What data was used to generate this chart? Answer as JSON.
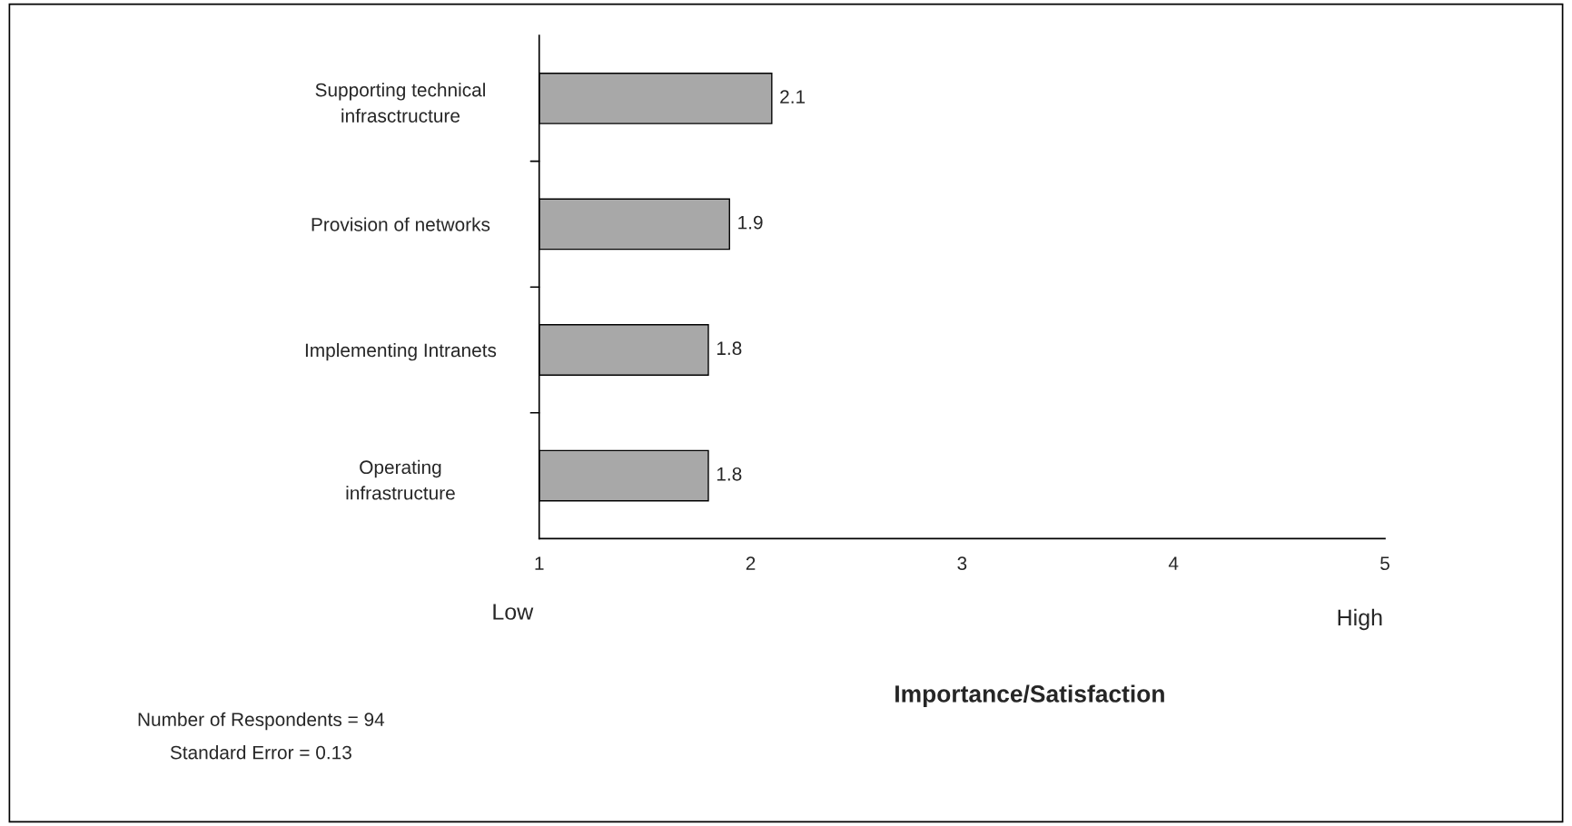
{
  "chart_data": {
    "type": "bar",
    "orientation": "horizontal",
    "xlabel": "Importance/Satisfaction",
    "categories": [
      "Supporting technical\ninfrasctructure",
      "Provision of networks",
      "Implementing Intranets",
      "Operating\ninfrastructure"
    ],
    "values": [
      2.1,
      1.9,
      1.8,
      1.8
    ],
    "color": "#a8a8a8",
    "data_labels": true,
    "xlim": [
      1,
      5
    ],
    "xticks": [
      1,
      2,
      3,
      4,
      5
    ],
    "grid": false,
    "annotations": [
      "Low",
      "High",
      "Number of Respondents = 94",
      "Standard Error = 0.13"
    ]
  }
}
